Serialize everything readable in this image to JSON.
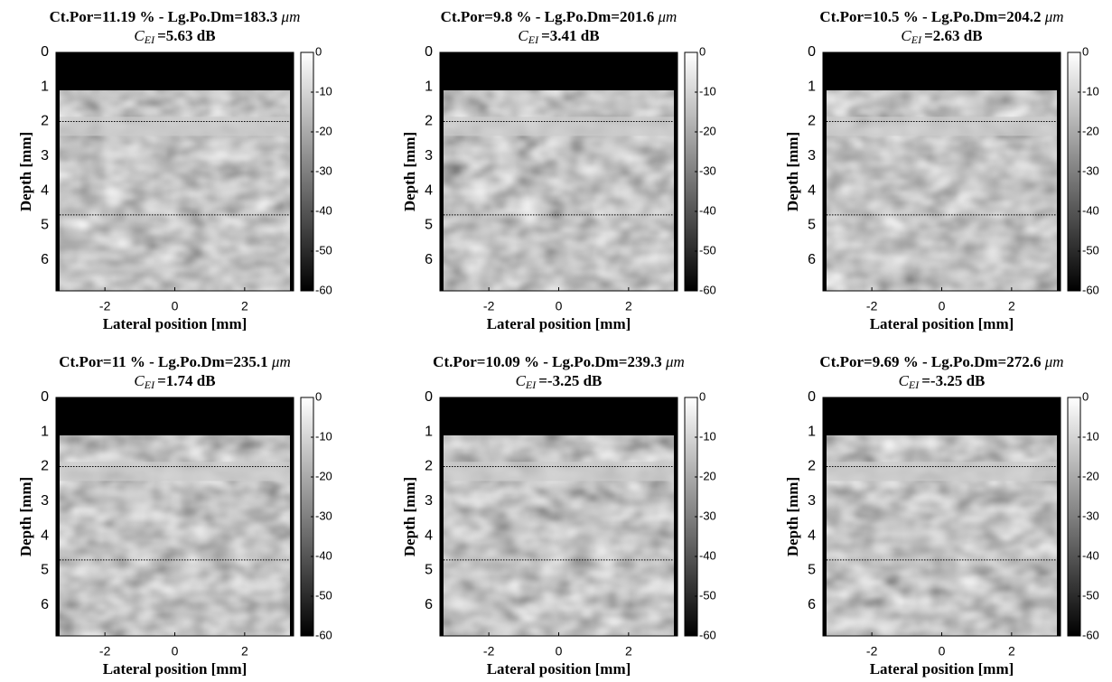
{
  "chart_data": [
    {
      "type": "image",
      "title_text": "Ct.Por=11.19 % - Lg.Po.Dm=183.3",
      "title_unit": "μm",
      "subtitle_symbol": "C",
      "subtitle_subscript": "EI",
      "subtitle_text": "=5.63 dB",
      "xlabel": "Lateral position [mm]",
      "ylabel": "Depth [mm]",
      "xlim": [
        -3.4,
        3.4
      ],
      "xticks": [
        -2,
        0,
        2
      ],
      "ylim": [
        0,
        6.9
      ],
      "yticks": [
        0,
        1,
        2,
        3,
        4,
        5,
        6
      ],
      "hlines": [
        2,
        4.7
      ],
      "clim": [
        -60,
        0
      ],
      "cticks": [
        0,
        -10,
        -20,
        -30,
        -40,
        -50,
        -60
      ]
    },
    {
      "type": "image",
      "title_text": "Ct.Por=9.8 % - Lg.Po.Dm=201.6",
      "title_unit": "μm",
      "subtitle_symbol": "C",
      "subtitle_subscript": "EI",
      "subtitle_text": "=3.41 dB",
      "xlabel": "Lateral position [mm]",
      "ylabel": "Depth [mm]",
      "xlim": [
        -3.4,
        3.4
      ],
      "xticks": [
        -2,
        0,
        2
      ],
      "ylim": [
        0,
        6.9
      ],
      "yticks": [
        0,
        1,
        2,
        3,
        4,
        5,
        6
      ],
      "hlines": [
        2,
        4.7
      ],
      "clim": [
        -60,
        0
      ],
      "cticks": [
        0,
        -10,
        -20,
        -30,
        -40,
        -50,
        -60
      ]
    },
    {
      "type": "image",
      "title_text": "Ct.Por=10.5 % - Lg.Po.Dm=204.2",
      "title_unit": "μm",
      "subtitle_symbol": "C",
      "subtitle_subscript": "EI",
      "subtitle_text": "=2.63 dB",
      "xlabel": "Lateral position [mm]",
      "ylabel": "Depth [mm]",
      "xlim": [
        -3.4,
        3.4
      ],
      "xticks": [
        -2,
        0,
        2
      ],
      "ylim": [
        0,
        6.9
      ],
      "yticks": [
        0,
        1,
        2,
        3,
        4,
        5,
        6
      ],
      "hlines": [
        2,
        4.7
      ],
      "clim": [
        -60,
        0
      ],
      "cticks": [
        0,
        -10,
        -20,
        -30,
        -40,
        -50,
        -60
      ]
    },
    {
      "type": "image",
      "title_text": "Ct.Por=11 % - Lg.Po.Dm=235.1",
      "title_unit": "μm",
      "subtitle_symbol": "C",
      "subtitle_subscript": "EI",
      "subtitle_text": "=1.74 dB",
      "xlabel": "Lateral position [mm]",
      "ylabel": "Depth [mm]",
      "xlim": [
        -3.4,
        3.4
      ],
      "xticks": [
        -2,
        0,
        2
      ],
      "ylim": [
        0,
        6.9
      ],
      "yticks": [
        0,
        1,
        2,
        3,
        4,
        5,
        6
      ],
      "hlines": [
        2,
        4.7
      ],
      "clim": [
        -60,
        0
      ],
      "cticks": [
        0,
        -10,
        -20,
        -30,
        -40,
        -50,
        -60
      ]
    },
    {
      "type": "image",
      "title_text": "Ct.Por=10.09 % - Lg.Po.Dm=239.3",
      "title_unit": "μm",
      "subtitle_symbol": "C",
      "subtitle_subscript": "EI",
      "subtitle_text": "=-3.25 dB",
      "xlabel": "Lateral position [mm]",
      "ylabel": "Depth [mm]",
      "xlim": [
        -3.4,
        3.4
      ],
      "xticks": [
        -2,
        0,
        2
      ],
      "ylim": [
        0,
        6.9
      ],
      "yticks": [
        0,
        1,
        2,
        3,
        4,
        5,
        6
      ],
      "hlines": [
        2,
        4.7
      ],
      "clim": [
        -60,
        0
      ],
      "cticks": [
        0,
        -10,
        -20,
        -30,
        -40,
        -50,
        -60
      ]
    },
    {
      "type": "image",
      "title_text": "Ct.Por=9.69 % - Lg.Po.Dm=272.6",
      "title_unit": "μm",
      "subtitle_symbol": "C",
      "subtitle_subscript": "EI",
      "subtitle_text": "=-3.25 dB",
      "xlabel": "Lateral position [mm]",
      "ylabel": "Depth [mm]",
      "xlim": [
        -3.4,
        3.4
      ],
      "xticks": [
        -2,
        0,
        2
      ],
      "ylim": [
        0,
        6.9
      ],
      "yticks": [
        0,
        1,
        2,
        3,
        4,
        5,
        6
      ],
      "hlines": [
        2,
        4.7
      ],
      "clim": [
        -60,
        0
      ],
      "cticks": [
        0,
        -10,
        -20,
        -30,
        -40,
        -50,
        -60
      ]
    }
  ]
}
